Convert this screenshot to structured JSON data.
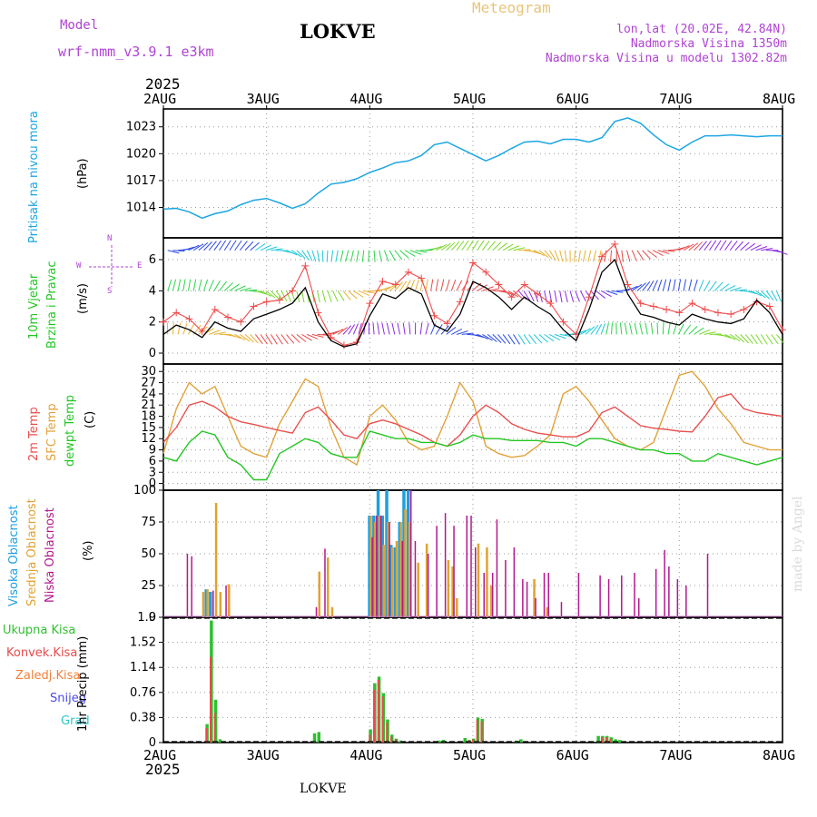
{
  "header": {
    "model_label": "Model",
    "model_name": "wrf-nmm_v3.9.1 e3km",
    "station": "LOKVE",
    "meteogram": "Meteogram",
    "coords": "lon,lat (20.02E, 42.84N)",
    "altitude": "Nadmorska Visina 1350m",
    "model_altitude": "Nadmorska Visina u modelu 1302.82m",
    "year_top": "2025",
    "year_bottom": "2025",
    "footer_station": "LOKVE",
    "watermark": "made by Angel"
  },
  "colors": {
    "pressure": "#1ba6e3",
    "wind_speed": "#000000",
    "gust": "#f04a4a",
    "temp2m": "#e8504f",
    "sfc_temp": "#e2a23a",
    "dewpt": "#23c623",
    "high_cloud": "#1f9fe0",
    "mid_cloud": "#e0a330",
    "low_cloud": "#b3188e",
    "total_precip": "#2fbf2f",
    "conv_precip": "#e84a4a",
    "frozen": "#f0803a",
    "snow": "#4a4ae8",
    "graupel": "#2fc6c6"
  },
  "chart_data": [
    {
      "type": "line",
      "panel": "pressure",
      "label_left": "Pritisak na nivou mora",
      "unit": "(hPa)",
      "x_ticks": [
        "2AUG",
        "3AUG",
        "4AUG",
        "5AUG",
        "6AUG",
        "7AUG",
        "8AUG"
      ],
      "y_ticks": [
        1014,
        1017,
        1020,
        1023
      ],
      "ylim": [
        1010.6,
        1025.0
      ],
      "x_hours": [
        0,
        3,
        6,
        9,
        12,
        15,
        18,
        21,
        24,
        27,
        30,
        33,
        36,
        39,
        42,
        45,
        48,
        51,
        54,
        57,
        60,
        63,
        66,
        69,
        72,
        75,
        78,
        81,
        84,
        87,
        90,
        93,
        96,
        99,
        102,
        105,
        108,
        111,
        114,
        117,
        120,
        123,
        126,
        129,
        132,
        135,
        138,
        141,
        144
      ],
      "values": [
        1013.8,
        1013.9,
        1013.5,
        1012.8,
        1013.3,
        1013.6,
        1014.3,
        1014.8,
        1015.0,
        1014.5,
        1013.9,
        1014.4,
        1015.6,
        1016.6,
        1016.8,
        1017.2,
        1017.9,
        1018.4,
        1019.0,
        1019.2,
        1019.8,
        1021.0,
        1021.3,
        1020.6,
        1019.9,
        1019.2,
        1019.8,
        1020.6,
        1021.3,
        1021.4,
        1021.1,
        1021.6,
        1021.6,
        1021.3,
        1021.8,
        1023.6,
        1024.0,
        1023.4,
        1022.1,
        1021.0,
        1020.4,
        1021.3,
        1022.0,
        1022.0,
        1022.1,
        1022.0,
        1021.9,
        1022.0,
        1022.0
      ]
    },
    {
      "type": "line",
      "panel": "wind",
      "label_left_1": "10m Vjetar",
      "label_left_2": "Brzina i Pravac",
      "unit": "(m/s)",
      "compass": "N",
      "compass_w": "W",
      "compass_e": "E",
      "compass_s": "S",
      "y_ticks": [
        0,
        2,
        4,
        6
      ],
      "ylim": [
        -0.7,
        7.4
      ],
      "x_hours": [
        0,
        3,
        6,
        9,
        12,
        15,
        18,
        21,
        24,
        27,
        30,
        33,
        36,
        39,
        42,
        45,
        48,
        51,
        54,
        57,
        60,
        63,
        66,
        69,
        72,
        75,
        78,
        81,
        84,
        87,
        90,
        93,
        96,
        99,
        102,
        105,
        108,
        111,
        114,
        117,
        120,
        123,
        126,
        129,
        132,
        135,
        138,
        141,
        144
      ],
      "series": [
        {
          "name": "wind speed",
          "values": [
            1.2,
            1.8,
            1.5,
            1.0,
            2.0,
            1.6,
            1.4,
            2.2,
            2.5,
            2.8,
            3.2,
            4.2,
            2.0,
            0.8,
            0.4,
            0.6,
            2.4,
            3.8,
            3.5,
            4.2,
            3.8,
            1.8,
            1.4,
            2.5,
            4.6,
            4.2,
            3.6,
            2.8,
            3.6,
            3.0,
            2.5,
            1.5,
            0.8,
            2.8,
            5.2,
            6.0,
            3.8,
            2.5,
            2.3,
            2.0,
            1.8,
            2.5,
            2.2,
            2.0,
            1.9,
            2.2,
            3.4,
            2.6,
            1.2
          ]
        },
        {
          "name": "gust",
          "values": [
            2.0,
            2.6,
            2.2,
            1.4,
            2.8,
            2.3,
            2.0,
            3.0,
            3.3,
            3.4,
            4.0,
            5.6,
            2.6,
            1.0,
            0.5,
            0.7,
            3.2,
            4.6,
            4.4,
            5.2,
            4.8,
            2.4,
            1.9,
            3.3,
            5.8,
            5.2,
            4.4,
            3.6,
            4.4,
            3.8,
            3.2,
            2.0,
            1.2,
            3.6,
            6.2,
            7.0,
            4.4,
            3.2,
            3.0,
            2.8,
            2.6,
            3.2,
            2.8,
            2.6,
            2.5,
            2.8,
            3.3,
            3.0,
            1.5
          ]
        }
      ],
      "rows": [
        6.6,
        4.0,
        1.2
      ]
    },
    {
      "type": "line",
      "panel": "temperature",
      "label_left_1": "2m Temp",
      "label_left_2": "SFC Temp",
      "label_left_3": "dewpt Temp",
      "unit": "(C)",
      "y_ticks": [
        0,
        3,
        6,
        9,
        12,
        15,
        18,
        21,
        24,
        27,
        30
      ],
      "ylim": [
        -1.8,
        32
      ],
      "x_hours": [
        0,
        3,
        6,
        9,
        12,
        15,
        18,
        21,
        24,
        27,
        30,
        33,
        36,
        39,
        42,
        45,
        48,
        51,
        54,
        57,
        60,
        63,
        66,
        69,
        72,
        75,
        78,
        81,
        84,
        87,
        90,
        93,
        96,
        99,
        102,
        105,
        108,
        111,
        114,
        117,
        120,
        123,
        126,
        129,
        132,
        135,
        138,
        141,
        144
      ],
      "series": [
        {
          "name": "2m Temp",
          "values": [
            11,
            15,
            21,
            22,
            20.5,
            18,
            16.5,
            15.8,
            15,
            14.2,
            13.5,
            19,
            20.5,
            17,
            13,
            12,
            16,
            17,
            16,
            14.5,
            13,
            11,
            10,
            13,
            18,
            21,
            19,
            16,
            14.5,
            13.5,
            13,
            12.5,
            12.5,
            14,
            19,
            20.5,
            18,
            15.5,
            14.8,
            14.5,
            14,
            13.8,
            18,
            23,
            24,
            20,
            19,
            18.5,
            18
          ]
        },
        {
          "name": "SFC Temp",
          "values": [
            8,
            20,
            27,
            24,
            26,
            18,
            10,
            8,
            7,
            16,
            22,
            28,
            26,
            15,
            7,
            5,
            18,
            21,
            17,
            11,
            9,
            10,
            18,
            27,
            22,
            10,
            8,
            7,
            7.5,
            10,
            13,
            24,
            26,
            22,
            17,
            12,
            10,
            9,
            11,
            20,
            29,
            30,
            26,
            20,
            16,
            11,
            10,
            9,
            9
          ]
        },
        {
          "name": "dewpt Temp",
          "values": [
            7,
            6,
            11,
            14,
            13,
            7,
            5,
            1,
            1,
            8,
            10,
            12,
            11,
            8,
            7,
            7,
            14,
            13,
            12,
            12,
            11,
            11,
            10,
            11,
            13,
            12,
            12,
            11.5,
            11.5,
            11.5,
            11,
            11,
            10,
            12,
            12,
            11,
            10,
            9,
            9,
            8,
            8,
            6,
            6,
            8,
            7,
            6,
            5,
            6,
            7
          ]
        }
      ]
    },
    {
      "type": "bar",
      "panel": "clouds",
      "label_left_1": "Visoka Oblacnost",
      "label_left_2": "Srednja Oblacnost",
      "label_left_3": "Niska Oblacnost",
      "unit": "(%)",
      "y_ticks": [
        0,
        25,
        50,
        75,
        100
      ],
      "ylim": [
        0,
        100
      ],
      "series": [
        {
          "name": "Visoka",
          "x_hours": [
            10,
            11,
            48,
            49,
            50,
            51,
            52,
            53,
            54,
            55,
            56,
            57
          ],
          "values": [
            22,
            20,
            80,
            80,
            100,
            80,
            100,
            57,
            55,
            75,
            100,
            100
          ]
        },
        {
          "name": "Srednja",
          "x_hours": [
            9,
            10,
            12,
            13,
            15,
            36,
            38,
            39,
            48,
            49,
            50,
            51,
            52,
            53,
            54,
            55,
            56,
            57,
            59,
            61,
            66,
            67,
            68,
            73,
            75,
            76,
            86,
            89
          ],
          "values": [
            20,
            22,
            90,
            20,
            26,
            36,
            47,
            8,
            80,
            75,
            80,
            57,
            75,
            55,
            60,
            75,
            85,
            75,
            43,
            58,
            45,
            40,
            15,
            58,
            55,
            25,
            30,
            8
          ]
        },
        {
          "name": "Niska",
          "x_hours": [
            5,
            6,
            11,
            14,
            35,
            37,
            48,
            49,
            50,
            52,
            55,
            57,
            58,
            61,
            63,
            65,
            67,
            70,
            71,
            72,
            74,
            76,
            77,
            79,
            81,
            83,
            84,
            86,
            88,
            89,
            92,
            96,
            101,
            103,
            106,
            109,
            110,
            114,
            116,
            117,
            119,
            121,
            126
          ],
          "values": [
            50,
            48,
            21,
            25,
            8,
            54,
            63,
            80,
            80,
            75,
            60,
            100,
            60,
            50,
            72,
            82,
            72,
            80,
            80,
            55,
            35,
            35,
            77,
            45,
            55,
            30,
            28,
            15,
            35,
            35,
            12,
            35,
            33,
            30,
            33,
            35,
            15,
            38,
            53,
            40,
            30,
            25,
            50
          ]
        }
      ]
    },
    {
      "type": "bar",
      "panel": "precip",
      "label_left_1": "Ukupna Kisa",
      "label_left_2": "Konvek.Kisa",
      "label_left_3": "Zaledj.Kisa",
      "label_left_4": "Snijeg",
      "label_left_5": "Grad",
      "unit": "1hr Precip (mm)",
      "y_ticks": [
        0,
        0.38,
        0.76,
        1.14,
        1.52,
        1.9
      ],
      "ylim": [
        0,
        1.9
      ],
      "series": [
        {
          "name": "Ukupna Kisa",
          "x_hours": [
            10,
            11,
            12,
            13,
            35,
            36,
            48,
            49,
            50,
            51,
            52,
            53,
            54,
            55,
            64,
            65,
            70,
            71,
            72,
            73,
            74,
            82,
            83,
            101,
            102,
            103,
            104,
            105,
            106
          ],
          "values": [
            0.28,
            1.85,
            0.65,
            0.05,
            0.14,
            0.16,
            0.2,
            0.9,
            1.0,
            0.75,
            0.35,
            0.12,
            0.06,
            0.03,
            0.03,
            0.04,
            0.07,
            0.04,
            0.06,
            0.38,
            0.36,
            0.03,
            0.05,
            0.1,
            0.1,
            0.1,
            0.08,
            0.05,
            0.04
          ]
        },
        {
          "name": "Konvek.Kisa",
          "x_hours": [
            10,
            11,
            12,
            48,
            49,
            50,
            51,
            52,
            53,
            54,
            71,
            72,
            73,
            74,
            102,
            103,
            104
          ],
          "values": [
            0.22,
            1.3,
            0.45,
            0.12,
            0.8,
            0.95,
            0.7,
            0.3,
            0.1,
            0.05,
            0.03,
            0.05,
            0.35,
            0.32,
            0.08,
            0.08,
            0.06
          ]
        },
        {
          "name": "Zaledj.Kisa",
          "x_hours": [],
          "values": []
        },
        {
          "name": "Snijeg",
          "x_hours": [],
          "values": []
        },
        {
          "name": "Grad",
          "x_hours": [],
          "values": []
        }
      ]
    }
  ]
}
